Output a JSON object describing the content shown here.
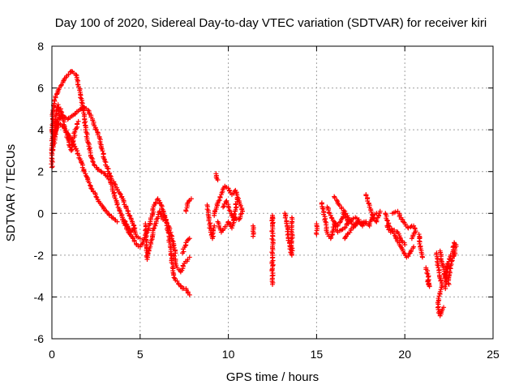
{
  "chart_data": {
    "type": "scatter",
    "title": "Day 100 of 2020, Sidereal Day-to-day VTEC variation (SDTVAR) for receiver kiri",
    "xlabel": "GPS time / hours",
    "ylabel": "SDTVAR / TECUs",
    "xlim": [
      0,
      25
    ],
    "ylim": [
      -6,
      8
    ],
    "xticks": [
      0,
      5,
      10,
      15,
      20,
      25
    ],
    "yticks": [
      -6,
      -4,
      -2,
      0,
      2,
      4,
      6,
      8
    ],
    "grid": true,
    "marker": "+",
    "color": "#ff0000",
    "series": [
      {
        "name": "SDTVAR",
        "trace_segments": [
          [
            [
              0.0,
              2.2
            ],
            [
              0.05,
              4.8
            ],
            [
              0.2,
              5.6
            ],
            [
              0.5,
              6.1
            ],
            [
              0.8,
              6.5
            ],
            [
              1.1,
              6.8
            ],
            [
              1.4,
              6.6
            ],
            [
              1.6,
              5.8
            ],
            [
              1.8,
              4.8
            ],
            [
              2.0,
              3.6
            ],
            [
              2.3,
              2.5
            ],
            [
              2.6,
              2.1
            ],
            [
              3.0,
              1.9
            ],
            [
              3.3,
              1.6
            ],
            [
              3.6,
              0.7
            ],
            [
              3.9,
              0.0
            ],
            [
              4.2,
              -0.5
            ],
            [
              4.5,
              -0.9
            ],
            [
              4.7,
              -0.7
            ]
          ],
          [
            [
              0.05,
              3.0
            ],
            [
              0.3,
              4.4
            ],
            [
              0.6,
              4.7
            ],
            [
              0.9,
              4.5
            ],
            [
              1.2,
              4.7
            ],
            [
              1.5,
              4.9
            ],
            [
              1.8,
              5.1
            ],
            [
              2.1,
              4.9
            ],
            [
              2.4,
              4.2
            ],
            [
              2.7,
              3.6
            ],
            [
              3.0,
              2.5
            ],
            [
              3.3,
              1.8
            ],
            [
              3.6,
              1.3
            ],
            [
              3.9,
              0.9
            ],
            [
              4.2,
              0.3
            ],
            [
              4.5,
              -0.3
            ],
            [
              4.8,
              -1.1
            ],
            [
              5.0,
              -1.2
            ]
          ],
          [
            [
              0.1,
              3.6
            ],
            [
              0.4,
              4.3
            ],
            [
              0.7,
              4.1
            ],
            [
              1.0,
              3.7
            ],
            [
              1.3,
              3.2
            ],
            [
              1.6,
              2.6
            ],
            [
              1.9,
              1.9
            ],
            [
              2.2,
              1.3
            ],
            [
              2.5,
              0.8
            ],
            [
              2.8,
              0.4
            ],
            [
              3.1,
              0.1
            ],
            [
              3.4,
              -0.2
            ],
            [
              3.7,
              -0.4
            ]
          ],
          [
            [
              0.0,
              4.0
            ],
            [
              0.15,
              3.7
            ],
            [
              0.25,
              4.9
            ],
            [
              0.35,
              5.2
            ],
            [
              0.45,
              4.6
            ]
          ],
          [
            [
              0.5,
              5.0
            ],
            [
              0.7,
              4.2
            ],
            [
              0.9,
              3.6
            ],
            [
              1.1,
              3.0
            ],
            [
              1.3,
              3.9
            ],
            [
              1.5,
              4.4
            ]
          ],
          [
            [
              4.0,
              -0.3
            ],
            [
              4.3,
              -0.8
            ],
            [
              4.6,
              -1.2
            ],
            [
              4.8,
              -1.5
            ],
            [
              5.0,
              -1.6
            ],
            [
              5.2,
              -1.3
            ],
            [
              5.4,
              -0.9
            ],
            [
              5.6,
              -0.3
            ],
            [
              5.8,
              0.4
            ],
            [
              6.0,
              0.7
            ],
            [
              6.2,
              0.4
            ],
            [
              6.4,
              -0.2
            ],
            [
              6.6,
              -0.6
            ],
            [
              6.8,
              -1.2
            ],
            [
              7.0,
              -1.9
            ]
          ],
          [
            [
              5.3,
              -0.5
            ],
            [
              5.4,
              -2.2
            ],
            [
              5.6,
              -1.4
            ],
            [
              5.8,
              -0.7
            ],
            [
              6.1,
              0.1
            ],
            [
              6.3,
              -0.3
            ]
          ],
          [
            [
              6.4,
              -0.1
            ],
            [
              6.6,
              -0.9
            ],
            [
              6.8,
              -2.2
            ],
            [
              6.9,
              -2.9
            ],
            [
              7.0,
              -3.2
            ],
            [
              7.2,
              -3.4
            ],
            [
              7.4,
              -3.6
            ],
            [
              7.6,
              -3.6
            ],
            [
              7.8,
              -3.9
            ]
          ],
          [
            [
              6.9,
              -2.0
            ],
            [
              7.1,
              -2.6
            ],
            [
              7.3,
              -2.8
            ],
            [
              7.5,
              -2.4
            ],
            [
              7.7,
              -2.2
            ],
            [
              7.8,
              -2.1
            ]
          ],
          [
            [
              7.4,
              -1.9
            ],
            [
              7.6,
              -1.4
            ],
            [
              7.8,
              -1.2
            ]
          ],
          [
            [
              7.6,
              0.1
            ],
            [
              7.7,
              0.5
            ],
            [
              7.9,
              0.7
            ]
          ],
          [
            [
              8.8,
              0.4
            ],
            [
              8.9,
              -0.2
            ],
            [
              9.0,
              -0.9
            ],
            [
              9.1,
              -1.2
            ],
            [
              9.2,
              -0.6
            ]
          ],
          [
            [
              9.2,
              -0.1
            ],
            [
              9.4,
              0.5
            ],
            [
              9.6,
              0.9
            ],
            [
              9.8,
              1.3
            ],
            [
              10.0,
              1.2
            ],
            [
              10.2,
              0.9
            ],
            [
              10.4,
              1.1
            ],
            [
              10.6,
              0.6
            ],
            [
              10.8,
              0.1
            ]
          ],
          [
            [
              9.4,
              -0.4
            ],
            [
              9.6,
              -0.9
            ],
            [
              9.8,
              -0.7
            ],
            [
              10.0,
              -0.4
            ],
            [
              10.2,
              -0.7
            ],
            [
              10.4,
              -0.2
            ],
            [
              10.6,
              -0.3
            ],
            [
              10.8,
              0.1
            ]
          ],
          [
            [
              9.3,
              1.9
            ],
            [
              9.4,
              1.6
            ]
          ],
          [
            [
              9.7,
              0.3
            ],
            [
              9.9,
              0.6
            ],
            [
              10.1,
              0.1
            ],
            [
              10.3,
              -0.3
            ],
            [
              10.5,
              0.7
            ]
          ],
          [
            [
              11.4,
              -0.6
            ],
            [
              11.4,
              -1.1
            ]
          ],
          [
            [
              12.5,
              -0.5
            ],
            [
              12.5,
              -0.1
            ],
            [
              12.5,
              -1.6
            ],
            [
              12.5,
              -2.0
            ],
            [
              12.5,
              -3.4
            ]
          ],
          [
            [
              13.2,
              0.0
            ],
            [
              13.3,
              -0.4
            ],
            [
              13.4,
              -1.2
            ],
            [
              13.5,
              -1.6
            ],
            [
              13.6,
              -2.0
            ],
            [
              13.6,
              -0.6
            ],
            [
              13.6,
              -0.2
            ]
          ],
          [
            [
              15.0,
              -0.5
            ],
            [
              15.0,
              -1.0
            ]
          ],
          [
            [
              15.3,
              0.5
            ],
            [
              15.4,
              0.1
            ],
            [
              15.5,
              -0.4
            ],
            [
              15.6,
              -0.9
            ],
            [
              15.7,
              -1.1
            ],
            [
              15.8,
              -1.2
            ],
            [
              15.9,
              -0.9
            ],
            [
              16.0,
              -0.5
            ],
            [
              16.2,
              -0.9
            ],
            [
              16.4,
              -0.8
            ],
            [
              16.6,
              -0.7
            ],
            [
              16.8,
              -0.4
            ],
            [
              17.0,
              -0.3
            ],
            [
              17.2,
              -0.2
            ],
            [
              17.4,
              -0.4
            ],
            [
              17.6,
              -0.6
            ],
            [
              17.8,
              -0.4
            ],
            [
              18.0,
              -0.6
            ],
            [
              18.2,
              -0.1
            ],
            [
              18.4,
              0.0
            ]
          ],
          [
            [
              15.6,
              0.3
            ],
            [
              15.8,
              -0.1
            ],
            [
              16.0,
              -0.4
            ],
            [
              16.2,
              -0.6
            ],
            [
              16.4,
              -0.3
            ],
            [
              16.6,
              0.1
            ],
            [
              16.8,
              -0.5
            ]
          ],
          [
            [
              16.0,
              0.8
            ],
            [
              16.2,
              0.5
            ],
            [
              16.4,
              0.3
            ],
            [
              16.6,
              0.0
            ],
            [
              16.8,
              -0.2
            ],
            [
              17.0,
              -0.5
            ],
            [
              17.2,
              -0.6
            ],
            [
              17.4,
              -0.3
            ]
          ],
          [
            [
              16.6,
              -1.2
            ],
            [
              17.2,
              -0.5
            ],
            [
              17.8,
              -0.4
            ],
            [
              17.5,
              -0.5
            ]
          ],
          [
            [
              17.8,
              0.9
            ],
            [
              18.0,
              0.3
            ],
            [
              18.2,
              -0.2
            ],
            [
              18.4,
              -0.4
            ],
            [
              18.6,
              0.1
            ]
          ],
          [
            [
              18.9,
              0.0
            ],
            [
              19.1,
              -0.6
            ],
            [
              19.3,
              -0.8
            ],
            [
              19.5,
              -1.2
            ],
            [
              19.7,
              -1.5
            ],
            [
              19.9,
              -1.8
            ],
            [
              20.1,
              -2.1
            ],
            [
              20.3,
              -1.9
            ],
            [
              20.5,
              -1.6
            ]
          ],
          [
            [
              19.0,
              -0.6
            ],
            [
              19.2,
              -0.9
            ],
            [
              19.4,
              -0.8
            ],
            [
              19.6,
              -0.9
            ],
            [
              19.8,
              -1.3
            ],
            [
              20.0,
              -1.5
            ]
          ],
          [
            [
              19.3,
              0.0
            ],
            [
              19.6,
              0.1
            ],
            [
              19.9,
              -0.4
            ],
            [
              20.2,
              -0.7
            ],
            [
              20.5,
              -0.6
            ],
            [
              20.6,
              -0.9
            ],
            [
              20.4,
              -1.2
            ]
          ],
          [
            [
              20.8,
              -1.0
            ],
            [
              20.9,
              -1.7
            ],
            [
              21.0,
              -2.1
            ]
          ],
          [
            [
              21.2,
              -2.6
            ],
            [
              21.3,
              -2.9
            ],
            [
              21.4,
              -3.5
            ],
            [
              21.3,
              -3.2
            ]
          ],
          [
            [
              21.8,
              -1.9
            ],
            [
              21.9,
              -2.6
            ],
            [
              22.0,
              -3.1
            ],
            [
              22.1,
              -3.4
            ],
            [
              21.9,
              -4.2
            ],
            [
              21.9,
              -4.6
            ],
            [
              22.0,
              -4.9
            ],
            [
              22.2,
              -4.5
            ]
          ],
          [
            [
              22.0,
              -1.8
            ],
            [
              22.1,
              -2.3
            ],
            [
              22.2,
              -2.6
            ],
            [
              22.3,
              -3.2
            ],
            [
              22.4,
              -2.4
            ]
          ],
          [
            [
              22.3,
              -3.6
            ],
            [
              22.4,
              -2.6
            ],
            [
              22.5,
              -2.3
            ],
            [
              22.6,
              -2.0
            ],
            [
              22.7,
              -1.9
            ],
            [
              22.8,
              -1.4
            ]
          ],
          [
            [
              22.5,
              -3.4
            ],
            [
              22.5,
              -3.0
            ],
            [
              22.6,
              -2.5
            ],
            [
              22.8,
              -2.0
            ],
            [
              22.9,
              -1.5
            ]
          ]
        ]
      }
    ]
  }
}
